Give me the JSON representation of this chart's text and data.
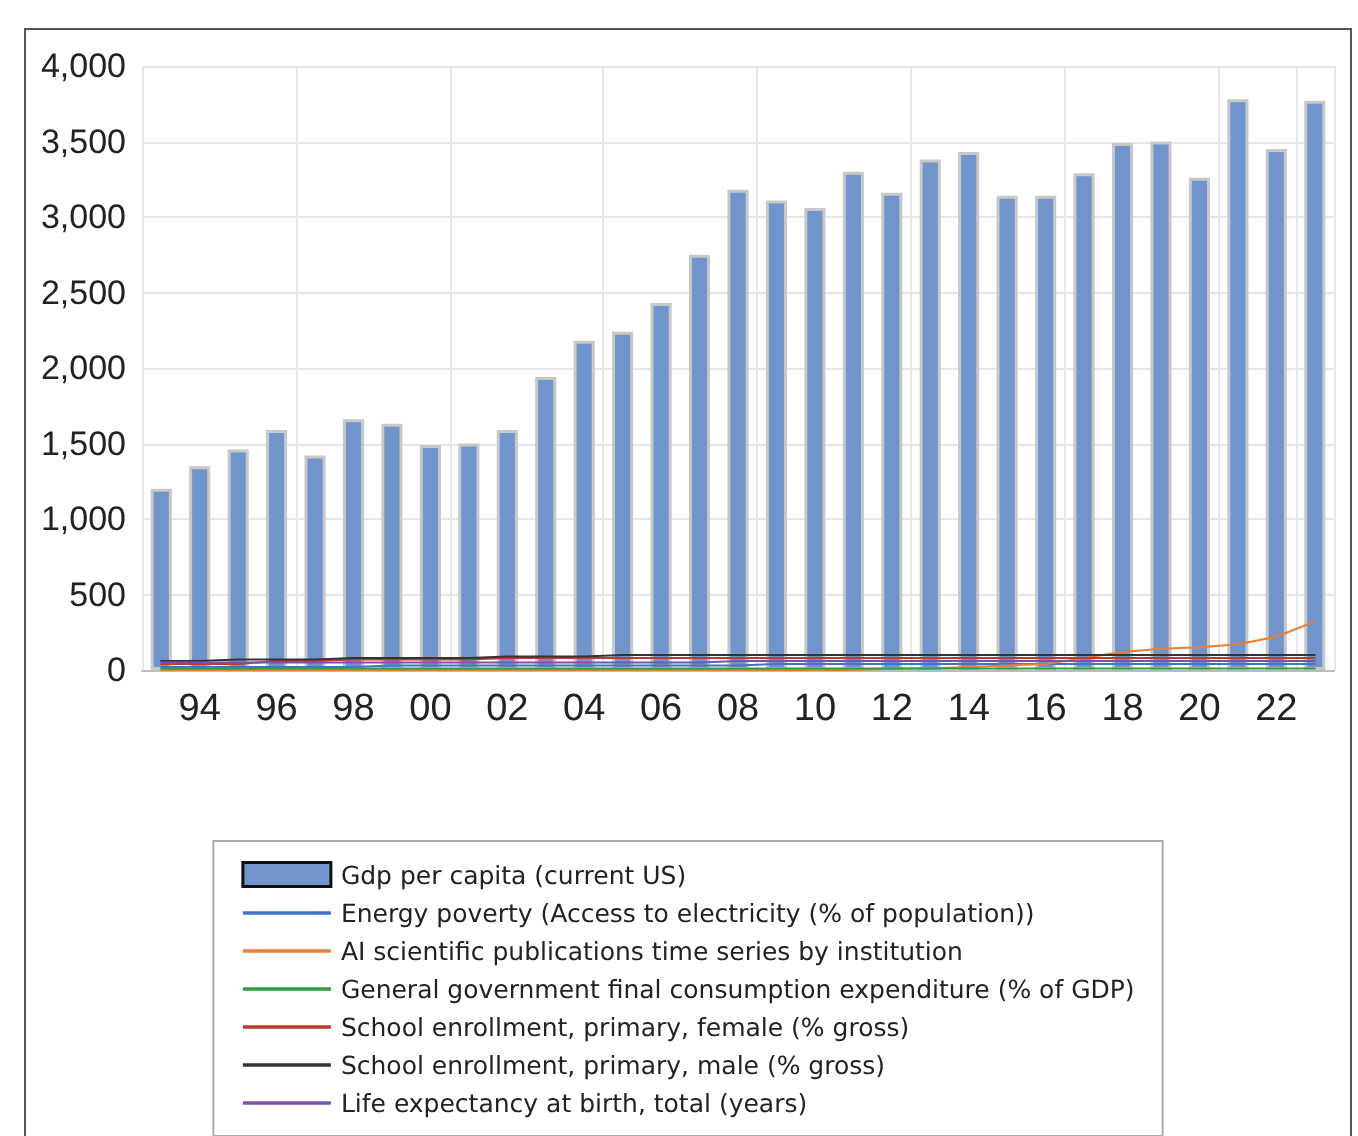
{
  "chart_data": {
    "type": "bar",
    "categories": [
      null,
      "94",
      null,
      "96",
      null,
      "98",
      null,
      "00",
      null,
      "02",
      null,
      "04",
      null,
      "06",
      null,
      "08",
      null,
      "10",
      null,
      "12",
      null,
      "14",
      null,
      "16",
      null,
      "18",
      null,
      "20",
      null,
      "22",
      null
    ],
    "series": [
      {
        "name": "Gdp per capita (current US)",
        "color": "#7094cc",
        "values": [
          1200,
          1350,
          1460,
          1590,
          1420,
          1660,
          1630,
          1490,
          1500,
          1590,
          1940,
          2180,
          2240,
          2430,
          2750,
          3180,
          3110,
          3060,
          3300,
          3160,
          3380,
          3430,
          3140,
          3140,
          3290,
          3490,
          3500,
          3260,
          3780,
          3450,
          3770
        ]
      },
      {
        "name": "Energy poverty (Access to electricity (% of population))",
        "type": "line",
        "color": "#4472c4",
        "values": [
          20,
          20,
          20,
          20,
          20,
          20,
          30,
          30,
          30,
          30,
          30,
          30,
          30,
          30,
          30,
          30,
          40,
          40,
          40,
          40,
          40,
          40,
          40,
          40,
          40,
          40,
          40,
          40,
          40,
          40,
          40
        ]
      },
      {
        "name": "AI scientific publications time series by institution",
        "type": "line",
        "color": "#ed7d31",
        "values": [
          0,
          0,
          0,
          0,
          0,
          0,
          0,
          0,
          0,
          0,
          0,
          0,
          0,
          0,
          0,
          0,
          0,
          0,
          0,
          10,
          10,
          20,
          30,
          40,
          80,
          120,
          140,
          150,
          170,
          220,
          320
        ]
      },
      {
        "name": "General government final consumption expenditure (% of GDP)",
        "type": "line",
        "color": "#2e9f45",
        "values": [
          10,
          10,
          10,
          10,
          10,
          10,
          10,
          10,
          10,
          10,
          10,
          10,
          10,
          10,
          10,
          10,
          10,
          10,
          10,
          10,
          10,
          10,
          10,
          10,
          10,
          10,
          10,
          10,
          10,
          10,
          10
        ]
      },
      {
        "name": "School enrollment, primary, female (% gross)",
        "type": "line",
        "color": "#c0392b",
        "values": [
          40,
          40,
          40,
          60,
          60,
          70,
          70,
          70,
          70,
          80,
          80,
          80,
          80,
          80,
          80,
          80,
          80,
          80,
          80,
          80,
          80,
          80,
          80,
          80,
          80,
          80,
          80,
          80,
          80,
          80,
          80
        ]
      },
      {
        "name": "School enrollment, primary, male (% gross)",
        "type": "line",
        "color": "#333333",
        "values": [
          60,
          60,
          70,
          70,
          70,
          80,
          80,
          80,
          80,
          90,
          90,
          90,
          100,
          100,
          100,
          100,
          100,
          100,
          100,
          100,
          100,
          100,
          100,
          100,
          100,
          100,
          100,
          100,
          100,
          100,
          100
        ]
      },
      {
        "name": "Life expectancy at birth, total (years)",
        "type": "line",
        "color": "#7b52ae",
        "values": [
          50,
          50,
          50,
          50,
          50,
          50,
          50,
          50,
          50,
          50,
          50,
          50,
          50,
          50,
          50,
          60,
          60,
          60,
          60,
          60,
          60,
          60,
          60,
          60,
          60,
          60,
          60,
          60,
          60,
          60,
          60
        ]
      }
    ],
    "ylim": [
      0,
      4000
    ],
    "yticks": [
      {
        "value": 0,
        "label": "0"
      },
      {
        "value": 500,
        "label": "500"
      },
      {
        "value": 1000,
        "label": "1,000"
      },
      {
        "value": 1500,
        "label": "1,500"
      },
      {
        "value": 2000,
        "label": "2,000"
      },
      {
        "value": 2500,
        "label": "2,500"
      },
      {
        "value": 3000,
        "label": "3,000"
      },
      {
        "value": 3500,
        "label": "3,500"
      },
      {
        "value": 4000,
        "label": "4,000"
      }
    ],
    "grid": true,
    "legend": "bottom",
    "marker": "none",
    "line_style": "solid"
  }
}
